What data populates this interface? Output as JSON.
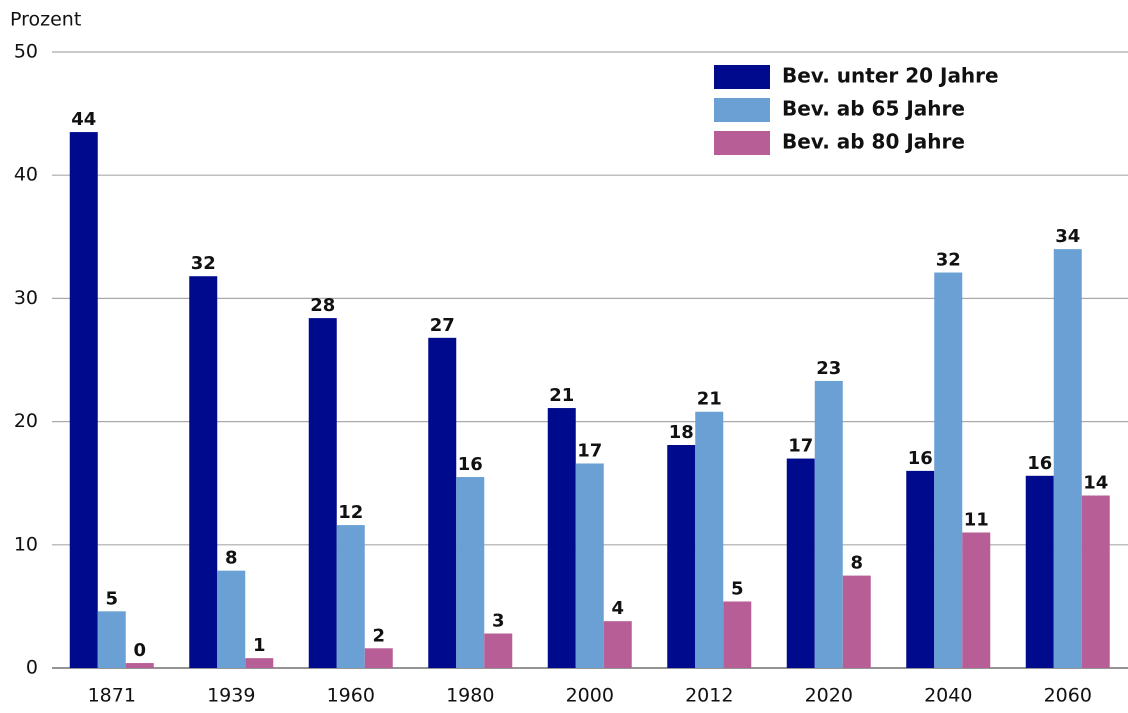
{
  "chart_data": {
    "type": "bar",
    "y_axis_label": "Prozent",
    "categories": [
      "1871",
      "1939",
      "1960",
      "1980",
      "2000",
      "2012",
      "2020",
      "2040",
      "2060"
    ],
    "series": [
      {
        "name": "Bev. unter 20 Jahre",
        "color": "#000a8c",
        "values": [
          43.5,
          31.8,
          28.4,
          26.8,
          21.1,
          18.1,
          17.0,
          16.0,
          15.6
        ],
        "value_labels": [
          "44",
          "32",
          "28",
          "27",
          "21",
          "18",
          "17",
          "16",
          "16"
        ]
      },
      {
        "name": "Bev. ab 65 Jahre",
        "color": "#6aa0d4",
        "values": [
          4.6,
          7.9,
          11.6,
          15.5,
          16.6,
          20.8,
          23.3,
          32.1,
          34.0
        ],
        "value_labels": [
          "5",
          "8",
          "12",
          "16",
          "17",
          "21",
          "23",
          "32",
          "34"
        ]
      },
      {
        "name": "Bev. ab 80 Jahre",
        "color": "#b85e96",
        "values": [
          0.4,
          0.8,
          1.6,
          2.8,
          3.8,
          5.4,
          7.5,
          11.0,
          14.0
        ],
        "value_labels": [
          "0",
          "1",
          "2",
          "3",
          "4",
          "5",
          "8",
          "11",
          "14"
        ]
      }
    ],
    "ylim": [
      0,
      50
    ],
    "yticks": [
      0,
      10,
      20,
      30,
      40,
      50
    ],
    "grid": true,
    "legend": "upper right"
  }
}
